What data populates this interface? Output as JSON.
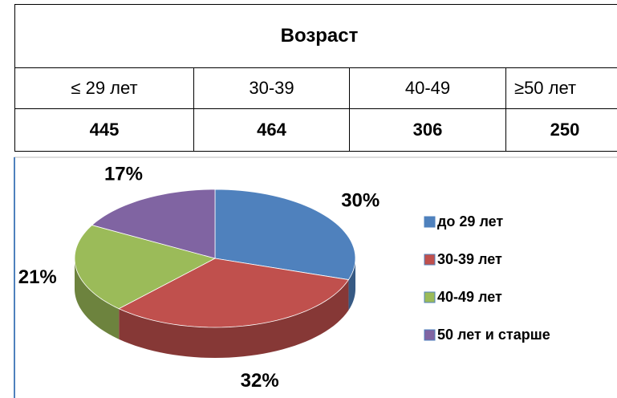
{
  "table": {
    "title": "Возраст",
    "header": [
      "≤ 29 лет",
      "30-39",
      "40-49",
      "≥50  лет"
    ],
    "rows": [
      [
        "445",
        "464",
        "306",
        "250"
      ]
    ]
  },
  "chart_data": {
    "type": "pie",
    "categories": [
      "до 29 лет",
      "30-39 лет",
      "40-49 лет",
      "50 лет и старше"
    ],
    "values": [
      30,
      32,
      21,
      17
    ],
    "value_labels": [
      "30%",
      "32%",
      "21%",
      "17%"
    ],
    "colors": [
      "#4f81bd",
      "#c0504d",
      "#9bbb59",
      "#8064a2"
    ],
    "legend": "right"
  }
}
